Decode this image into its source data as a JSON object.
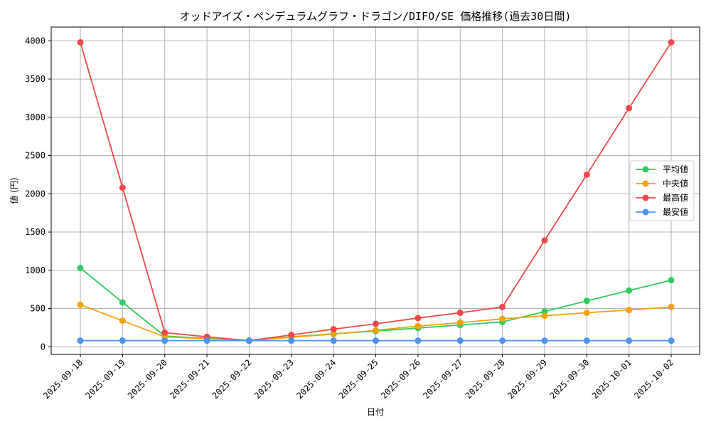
{
  "chart_data": {
    "type": "line",
    "title": "オッドアイズ・ペンデュラムグラフ・ドラゴン/DIFO/SE 価格推移(過去30日間)",
    "xlabel": "日付",
    "ylabel": "値 (円)",
    "ylim": [
      -100,
      4180
    ],
    "yticks": [
      0,
      500,
      1000,
      1500,
      2000,
      2500,
      3000,
      3500,
      4000
    ],
    "grid": true,
    "legend_position": "center-right",
    "categories": [
      "2025-09-18",
      "2025-09-19",
      "2025-09-20",
      "2025-09-21",
      "2025-09-22",
      "2025-09-23",
      "2025-09-24",
      "2025-09-25",
      "2025-09-26",
      "2025-09-27",
      "2025-09-28",
      "2025-09-29",
      "2025-09-30",
      "2025-10-01",
      "2025-10-02"
    ],
    "series": [
      {
        "name": "平均値",
        "color": "#2ecc5f",
        "values": [
          1030,
          580,
          140,
          110,
          80,
          130,
          170,
          205,
          245,
          285,
          325,
          460,
          600,
          735,
          870
        ]
      },
      {
        "name": "中央値",
        "color": "#f5a10a",
        "values": [
          550,
          340,
          130,
          105,
          80,
          125,
          165,
          215,
          270,
          315,
          365,
          405,
          445,
          480,
          520
        ]
      },
      {
        "name": "最高値",
        "color": "#f04848",
        "values": [
          3980,
          2080,
          185,
          130,
          80,
          155,
          230,
          300,
          375,
          445,
          520,
          1390,
          2250,
          3120,
          3980
        ]
      },
      {
        "name": "最安値",
        "color": "#4d94f0",
        "values": [
          80,
          80,
          80,
          80,
          80,
          80,
          80,
          80,
          80,
          80,
          80,
          80,
          80,
          80,
          80
        ]
      }
    ]
  }
}
